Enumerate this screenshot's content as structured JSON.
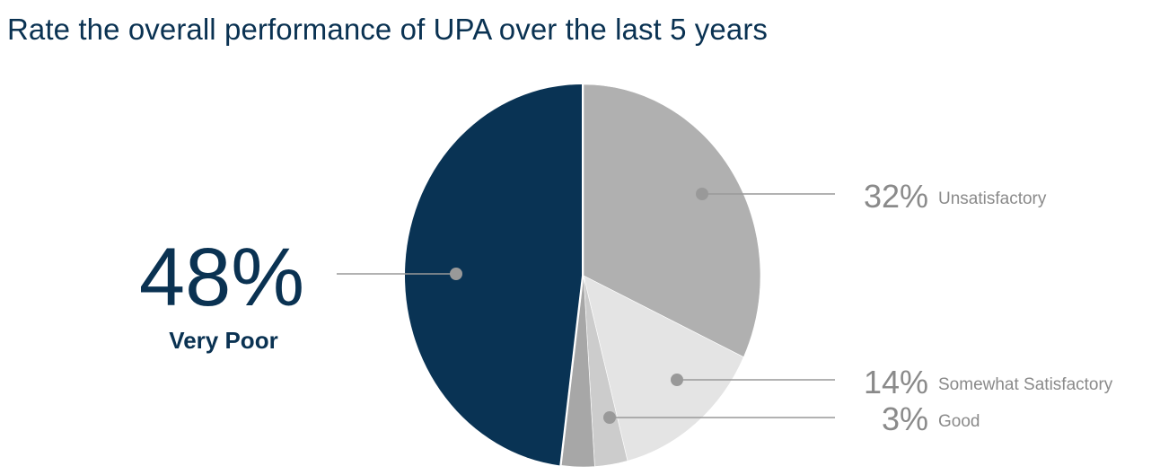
{
  "title": "Rate the overall performance of UPA over the last 5 years",
  "colors": {
    "very_poor": "#093354",
    "unsatisfactory": "#b0b0b0",
    "somewhat_satisfactory": "#e4e4e4",
    "good": "#cccccc",
    "other": "#a7a7a7",
    "leader": "#999999",
    "marker": "#999999",
    "label_gray": "#8a8a8a",
    "label_dark": "#0a3252"
  },
  "chart_data": {
    "type": "pie",
    "title": "Rate the overall performance of UPA over the last 5 years",
    "slices": [
      {
        "label": "Very Poor",
        "value": 48,
        "value_label": "48%"
      },
      {
        "label": "Unsatisfactory",
        "value": 32,
        "value_label": "32%"
      },
      {
        "label": "Somewhat Satisfactory",
        "value": 14,
        "value_label": "14%"
      },
      {
        "label": "Good",
        "value": 3,
        "value_label": "3%"
      }
    ],
    "legend": "none"
  }
}
